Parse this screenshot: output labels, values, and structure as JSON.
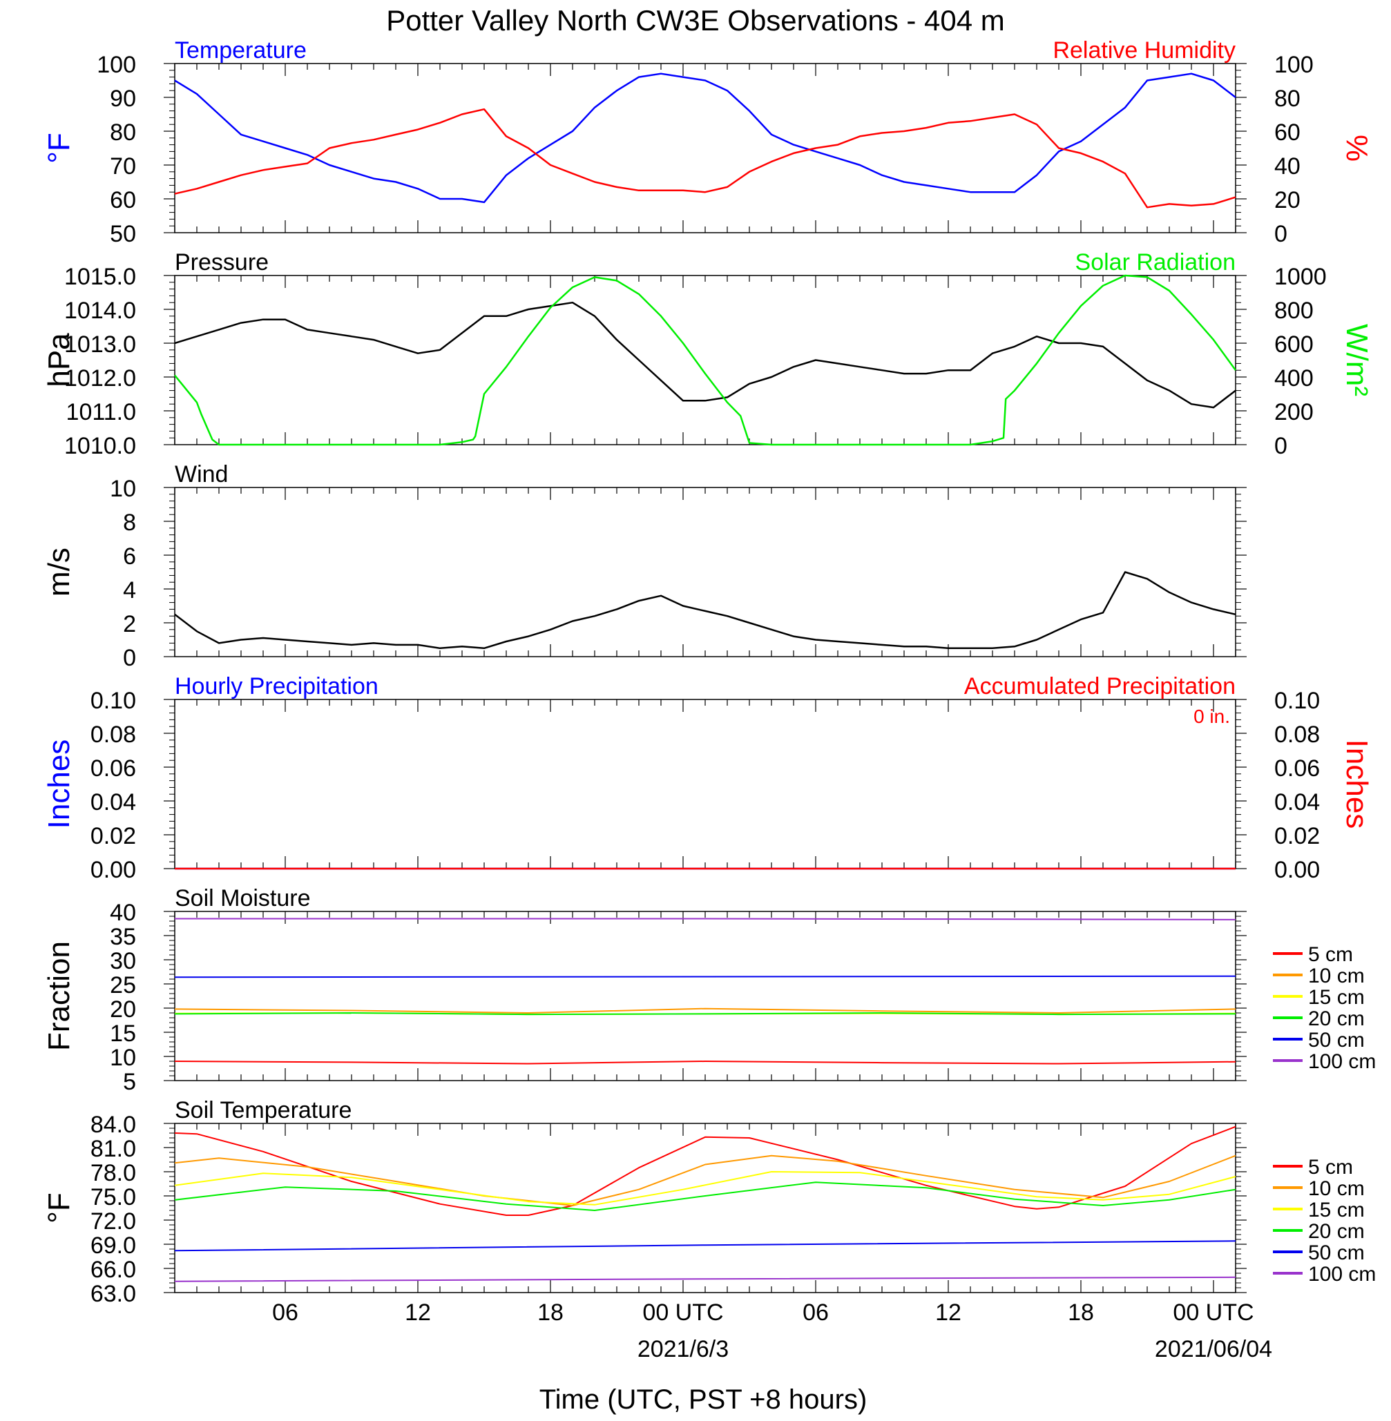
{
  "title": "Potter Valley North CW3E Observations - 404 m",
  "x_axis": {
    "label": "Time (UTC, PST +8 hours)",
    "range_hours": [
      0,
      48
    ],
    "ticks": [
      {
        "hour": 5,
        "label": "06"
      },
      {
        "hour": 11,
        "label": "12"
      },
      {
        "hour": 17,
        "label": "18"
      },
      {
        "hour": 23,
        "label": "00 UTC"
      },
      {
        "hour": 29,
        "label": "06"
      },
      {
        "hour": 35,
        "label": "12"
      },
      {
        "hour": 41,
        "label": "18"
      },
      {
        "hour": 47,
        "label": "00 UTC"
      }
    ],
    "date_labels": [
      {
        "hour": 23,
        "label": "2021/6/3"
      },
      {
        "hour": 47,
        "label": "2021/06/04"
      }
    ]
  },
  "panels": {
    "temp_rh": {
      "left_title": "Temperature",
      "right_title": "Relative Humidity",
      "left_ylabel": "°F",
      "right_ylabel": "%",
      "left_ticks": [
        "50",
        "60",
        "70",
        "80",
        "90",
        "100"
      ],
      "right_ticks": [
        "0",
        "20",
        "40",
        "60",
        "80",
        "100"
      ]
    },
    "pressure_solar": {
      "left_title": "Pressure",
      "right_title": "Solar Radiation",
      "left_ylabel": "hPa",
      "right_ylabel": "W/m²",
      "left_ticks": [
        "1010.0",
        "1011.0",
        "1012.0",
        "1013.0",
        "1014.0",
        "1015.0"
      ],
      "right_ticks": [
        "0",
        "200",
        "400",
        "600",
        "800",
        "1000"
      ]
    },
    "wind": {
      "left_title": "Wind",
      "left_ylabel": "m/s",
      "left_ticks": [
        "0",
        "2",
        "4",
        "6",
        "8",
        "10"
      ]
    },
    "precip": {
      "left_title": "Hourly Precipitation",
      "right_title": "Accumulated Precipitation",
      "total_label": "0 in.",
      "left_ylabel": "Inches",
      "right_ylabel": "Inches",
      "left_ticks": [
        "0.00",
        "0.02",
        "0.04",
        "0.06",
        "0.08",
        "0.10"
      ],
      "right_ticks": [
        "0.00",
        "0.02",
        "0.04",
        "0.06",
        "0.08",
        "0.10"
      ]
    },
    "soil_moisture": {
      "left_title": "Soil Moisture",
      "left_ylabel": "Fraction",
      "left_ticks": [
        "5",
        "10",
        "15",
        "20",
        "25",
        "30",
        "35",
        "40"
      ]
    },
    "soil_temp": {
      "left_title": "Soil Temperature",
      "left_ylabel": "°F",
      "left_ticks": [
        "63.0",
        "66.0",
        "69.0",
        "72.0",
        "75.0",
        "78.0",
        "81.0",
        "84.0"
      ]
    }
  },
  "legend": {
    "entries": [
      {
        "label": "5 cm",
        "color": "#ff0000"
      },
      {
        "label": "10 cm",
        "color": "#ff9900"
      },
      {
        "label": "15 cm",
        "color": "#ffff00"
      },
      {
        "label": "20 cm",
        "color": "#00ee00"
      },
      {
        "label": "50 cm",
        "color": "#0000ee"
      },
      {
        "label": "100 cm",
        "color": "#9933cc"
      }
    ]
  },
  "colors": {
    "temperature": "#0000ff",
    "humidity": "#ff0000",
    "pressure": "#000000",
    "solar": "#00ee00",
    "wind_speed": "#000000",
    "wind_barb": "#ff0000",
    "precip_hourly": "#0000ff",
    "precip_accum": "#ff0000"
  },
  "chart_data": [
    {
      "type": "line",
      "id": "temp_rh",
      "xlim": [
        0,
        48
      ],
      "series": [
        {
          "name": "Temperature",
          "axis": "left",
          "ylim": [
            50,
            100
          ],
          "x": [
            0,
            1,
            2,
            3,
            4,
            5,
            6,
            7,
            8,
            9,
            10,
            11,
            12,
            13,
            14,
            15,
            16,
            17,
            18,
            19,
            20,
            21,
            22,
            23,
            24,
            25,
            26,
            27,
            28,
            29,
            30,
            31,
            32,
            33,
            34,
            35,
            36,
            37,
            38,
            39,
            40,
            41,
            42,
            43,
            44,
            45,
            46,
            47,
            48
          ],
          "y": [
            95,
            91,
            85,
            79,
            77,
            75,
            73,
            70,
            68,
            66,
            65,
            63,
            60,
            60,
            59,
            67,
            72,
            76,
            80,
            87,
            92,
            96,
            97,
            96,
            95,
            92,
            86,
            79,
            76,
            74,
            72,
            70,
            67,
            65,
            64,
            63,
            62,
            62,
            62,
            67,
            74,
            77,
            82,
            87,
            95,
            96,
            97,
            95,
            90
          ]
        },
        {
          "name": "Relative Humidity",
          "axis": "right",
          "ylim": [
            0,
            100
          ],
          "x": [
            0,
            1,
            2,
            3,
            4,
            5,
            6,
            7,
            8,
            9,
            10,
            11,
            12,
            13,
            14,
            15,
            16,
            17,
            18,
            19,
            20,
            21,
            22,
            23,
            24,
            25,
            26,
            27,
            28,
            29,
            30,
            31,
            32,
            33,
            34,
            35,
            36,
            37,
            38,
            39,
            40,
            41,
            42,
            43,
            44,
            45,
            46,
            47,
            48
          ],
          "y": [
            23,
            26,
            30,
            34,
            37,
            39,
            41,
            50,
            53,
            55,
            58,
            61,
            65,
            70,
            73,
            57,
            50,
            40,
            35,
            30,
            27,
            25,
            25,
            25,
            24,
            27,
            36,
            42,
            47,
            50,
            52,
            57,
            59,
            60,
            62,
            65,
            66,
            68,
            70,
            64,
            50,
            47,
            42,
            35,
            15,
            17,
            16,
            17,
            21
          ]
        }
      ]
    },
    {
      "type": "line",
      "id": "pressure_solar",
      "xlim": [
        0,
        48
      ],
      "series": [
        {
          "name": "Pressure",
          "axis": "left",
          "ylim": [
            1010,
            1015
          ],
          "x": [
            0,
            1,
            2,
            3,
            4,
            5,
            6,
            7,
            8,
            9,
            10,
            11,
            12,
            13,
            14,
            15,
            16,
            17,
            18,
            19,
            20,
            21,
            22,
            23,
            24,
            25,
            26,
            27,
            28,
            29,
            30,
            31,
            32,
            33,
            34,
            35,
            36,
            37,
            38,
            39,
            40,
            41,
            42,
            43,
            44,
            45,
            46,
            47,
            48
          ],
          "y": [
            1013.0,
            1013.2,
            1013.4,
            1013.6,
            1013.7,
            1013.7,
            1013.4,
            1013.3,
            1013.2,
            1013.1,
            1012.9,
            1012.7,
            1012.8,
            1013.3,
            1013.8,
            1013.8,
            1014.0,
            1014.1,
            1014.2,
            1013.8,
            1013.1,
            1012.5,
            1011.9,
            1011.3,
            1011.3,
            1011.4,
            1011.8,
            1012.0,
            1012.3,
            1012.5,
            1012.4,
            1012.3,
            1012.2,
            1012.1,
            1012.1,
            1012.2,
            1012.2,
            1012.7,
            1012.9,
            1013.2,
            1013.0,
            1013.0,
            1012.9,
            1012.4,
            1011.9,
            1011.6,
            1011.2,
            1011.1,
            1011.6
          ]
        },
        {
          "name": "Solar Radiation",
          "axis": "right",
          "ylim": [
            0,
            1000
          ],
          "x": [
            0,
            1,
            1.2,
            1.7,
            2,
            3,
            6,
            9,
            11,
            12,
            13,
            13.5,
            13.6,
            14,
            15,
            16,
            17,
            18,
            19,
            20,
            21,
            22,
            23,
            24,
            25,
            25.6,
            26,
            27,
            30,
            33,
            36,
            37,
            37.5,
            37.6,
            38,
            39,
            40,
            41,
            42,
            43,
            44,
            45,
            46,
            47,
            48
          ],
          "y": [
            410,
            250,
            180,
            30,
            0,
            0,
            0,
            0,
            0,
            0,
            15,
            30,
            50,
            300,
            460,
            640,
            810,
            930,
            990,
            970,
            890,
            760,
            600,
            420,
            250,
            170,
            10,
            0,
            0,
            0,
            0,
            20,
            40,
            270,
            320,
            480,
            660,
            820,
            940,
            1000,
            990,
            910,
            770,
            620,
            440
          ]
        }
      ]
    },
    {
      "type": "line",
      "id": "wind",
      "xlim": [
        0,
        48
      ],
      "ylim": [
        0,
        10
      ],
      "series": [
        {
          "name": "Wind",
          "x": [
            0,
            1,
            2,
            3,
            4,
            5,
            6,
            7,
            8,
            9,
            10,
            11,
            12,
            13,
            14,
            15,
            16,
            17,
            18,
            19,
            20,
            21,
            22,
            23,
            24,
            25,
            26,
            27,
            28,
            29,
            30,
            31,
            32,
            33,
            34,
            35,
            36,
            37,
            38,
            39,
            40,
            41,
            42,
            43,
            44,
            45,
            46,
            47,
            48
          ],
          "y": [
            2.5,
            1.5,
            0.8,
            1.0,
            1.1,
            1.0,
            0.9,
            0.8,
            0.7,
            0.8,
            0.7,
            0.7,
            0.5,
            0.6,
            0.5,
            0.9,
            1.2,
            1.6,
            2.1,
            2.4,
            2.8,
            3.3,
            3.6,
            3.0,
            2.7,
            2.4,
            2.0,
            1.6,
            1.2,
            1.0,
            0.9,
            0.8,
            0.7,
            0.6,
            0.6,
            0.5,
            0.5,
            0.5,
            0.6,
            1.0,
            1.6,
            2.2,
            2.6,
            5.0,
            4.6,
            3.8,
            3.2,
            2.8,
            2.5
          ]
        }
      ]
    },
    {
      "type": "line",
      "id": "precip",
      "xlim": [
        0,
        48
      ],
      "series": [
        {
          "name": "Hourly Precipitation",
          "axis": "left",
          "ylim": [
            0,
            0.1
          ],
          "x": [
            0,
            48
          ],
          "y": [
            0,
            0
          ]
        },
        {
          "name": "Accumulated Precipitation",
          "axis": "right",
          "ylim": [
            0,
            0.1
          ],
          "x": [
            0,
            48
          ],
          "y": [
            0,
            0
          ]
        }
      ]
    },
    {
      "type": "line",
      "id": "soil_moisture",
      "xlim": [
        0,
        48
      ],
      "ylim": [
        5,
        40
      ],
      "series": [
        {
          "name": "5 cm",
          "x": [
            0,
            8,
            16,
            24,
            32,
            40,
            48
          ],
          "y": [
            9.0,
            8.8,
            8.5,
            9.0,
            8.7,
            8.5,
            8.9
          ]
        },
        {
          "name": "10 cm",
          "x": [
            0,
            8,
            16,
            24,
            32,
            40,
            48
          ],
          "y": [
            19.8,
            19.5,
            19.0,
            19.9,
            19.4,
            19.0,
            19.8
          ]
        },
        {
          "name": "15 cm",
          "x": [
            0,
            8,
            16,
            24,
            32,
            40,
            48
          ],
          "y": [
            18.9,
            19.0,
            18.7,
            18.8,
            18.9,
            18.7,
            18.9
          ]
        },
        {
          "name": "20 cm",
          "x": [
            0,
            8,
            16,
            24,
            32,
            40,
            48
          ],
          "y": [
            18.8,
            19.0,
            18.7,
            18.8,
            19.0,
            18.7,
            18.8
          ]
        },
        {
          "name": "50 cm",
          "x": [
            0,
            24,
            48
          ],
          "y": [
            26.4,
            26.5,
            26.6
          ]
        },
        {
          "name": "100 cm",
          "x": [
            0,
            24,
            48
          ],
          "y": [
            38.5,
            38.5,
            38.3
          ]
        }
      ]
    },
    {
      "type": "line",
      "id": "soil_temp",
      "xlim": [
        0,
        48
      ],
      "ylim": [
        63,
        84
      ],
      "series": [
        {
          "name": "5 cm",
          "x": [
            0,
            1,
            4,
            8,
            12,
            15,
            16,
            18,
            21,
            24,
            26,
            30,
            34,
            38,
            39,
            40,
            43,
            46,
            48
          ],
          "y": [
            82.8,
            82.7,
            80.5,
            76.8,
            74.0,
            72.6,
            72.6,
            73.8,
            78.5,
            82.3,
            82.2,
            79.5,
            76.3,
            73.7,
            73.4,
            73.6,
            76.2,
            81.5,
            83.6
          ]
        },
        {
          "name": "10 cm",
          "x": [
            0,
            2,
            6,
            10,
            14,
            18,
            21,
            24,
            27,
            30,
            34,
            38,
            42,
            45,
            48
          ],
          "y": [
            79.1,
            79.7,
            78.6,
            76.8,
            75.0,
            73.8,
            75.8,
            78.9,
            80.0,
            79.3,
            77.5,
            75.8,
            74.8,
            76.8,
            80.0
          ]
        },
        {
          "name": "15 cm",
          "x": [
            0,
            4,
            8,
            12,
            16,
            19,
            23,
            27,
            31,
            35,
            39,
            42,
            45,
            48
          ],
          "y": [
            76.3,
            77.8,
            77.3,
            75.8,
            74.3,
            73.9,
            75.8,
            78.0,
            77.9,
            76.4,
            74.9,
            74.5,
            75.2,
            77.4
          ]
        },
        {
          "name": "20 cm",
          "x": [
            0,
            5,
            10,
            15,
            19,
            24,
            29,
            34,
            38,
            42,
            45,
            48
          ],
          "y": [
            74.5,
            76.1,
            75.6,
            74.0,
            73.2,
            75.0,
            76.7,
            76.0,
            74.6,
            73.8,
            74.5,
            75.8
          ]
        },
        {
          "name": "50 cm",
          "x": [
            0,
            24,
            48
          ],
          "y": [
            68.2,
            68.9,
            69.4
          ]
        },
        {
          "name": "100 cm",
          "x": [
            0,
            24,
            48
          ],
          "y": [
            64.4,
            64.7,
            64.9
          ]
        }
      ]
    }
  ]
}
